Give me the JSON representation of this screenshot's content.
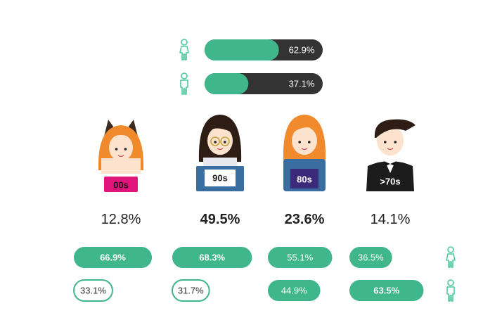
{
  "colors": {
    "green": "#3fb68b",
    "dark_track": "#333333",
    "outline_icon": "#4ec9a0",
    "text_dark": "#222222",
    "hair_orange": "#f08a2c",
    "hair_brown": "#6b4226",
    "hair_dark": "#2e1d14",
    "skin": "#fde3cd",
    "pink": "#e1147c",
    "blue_book": "#3a6ea0",
    "purple_shirt": "#3b2a7a",
    "black_suit": "#1c1c1c"
  },
  "chart_data": [
    {
      "type": "bar",
      "orientation": "horizontal",
      "title": "",
      "categories": [
        "female",
        "male"
      ],
      "icons": [
        "female-icon",
        "male-icon"
      ],
      "values": [
        62.9,
        37.1
      ],
      "labels": [
        "62.9%",
        "37.1%"
      ],
      "ylim": [
        0,
        100
      ]
    },
    {
      "type": "table",
      "categories": [
        "00s",
        "90s",
        "80s",
        ">70s"
      ],
      "values": [
        12.8,
        49.5,
        23.6,
        14.1
      ],
      "labels": [
        "12.8%",
        "49.5%",
        "23.6%",
        "14.1%"
      ],
      "emphasis": [
        false,
        true,
        true,
        false
      ]
    },
    {
      "type": "bar",
      "orientation": "horizontal",
      "categories": [
        "00s",
        "90s",
        "80s",
        ">70s"
      ],
      "series": [
        {
          "icon": "female-icon",
          "values": [
            66.9,
            68.3,
            55.1,
            36.5
          ],
          "labels": [
            "66.9%",
            "68.3%",
            "55.1%",
            "36.5%"
          ],
          "style": [
            "filled",
            "filled",
            "filled",
            "filled"
          ],
          "bold": [
            true,
            true,
            false,
            false
          ]
        },
        {
          "icon": "male-icon",
          "values": [
            33.1,
            31.7,
            44.9,
            63.5
          ],
          "labels": [
            "33.1%",
            "31.7%",
            "44.9%",
            "63.5%"
          ],
          "style": [
            "outline",
            "outline",
            "filled",
            "filled"
          ],
          "bold": [
            false,
            false,
            false,
            true
          ]
        }
      ]
    }
  ],
  "avatars": [
    {
      "name": "00s",
      "label": "00s",
      "icon": "girl-cat-ears-avatar"
    },
    {
      "name": "90s",
      "label": "90s",
      "icon": "girl-glasses-book-avatar"
    },
    {
      "name": "80s",
      "label": "80s",
      "icon": "girl-orange-hair-avatar"
    },
    {
      "name": "70s",
      "label": ">70s",
      "icon": "boy-tuxedo-avatar"
    }
  ]
}
